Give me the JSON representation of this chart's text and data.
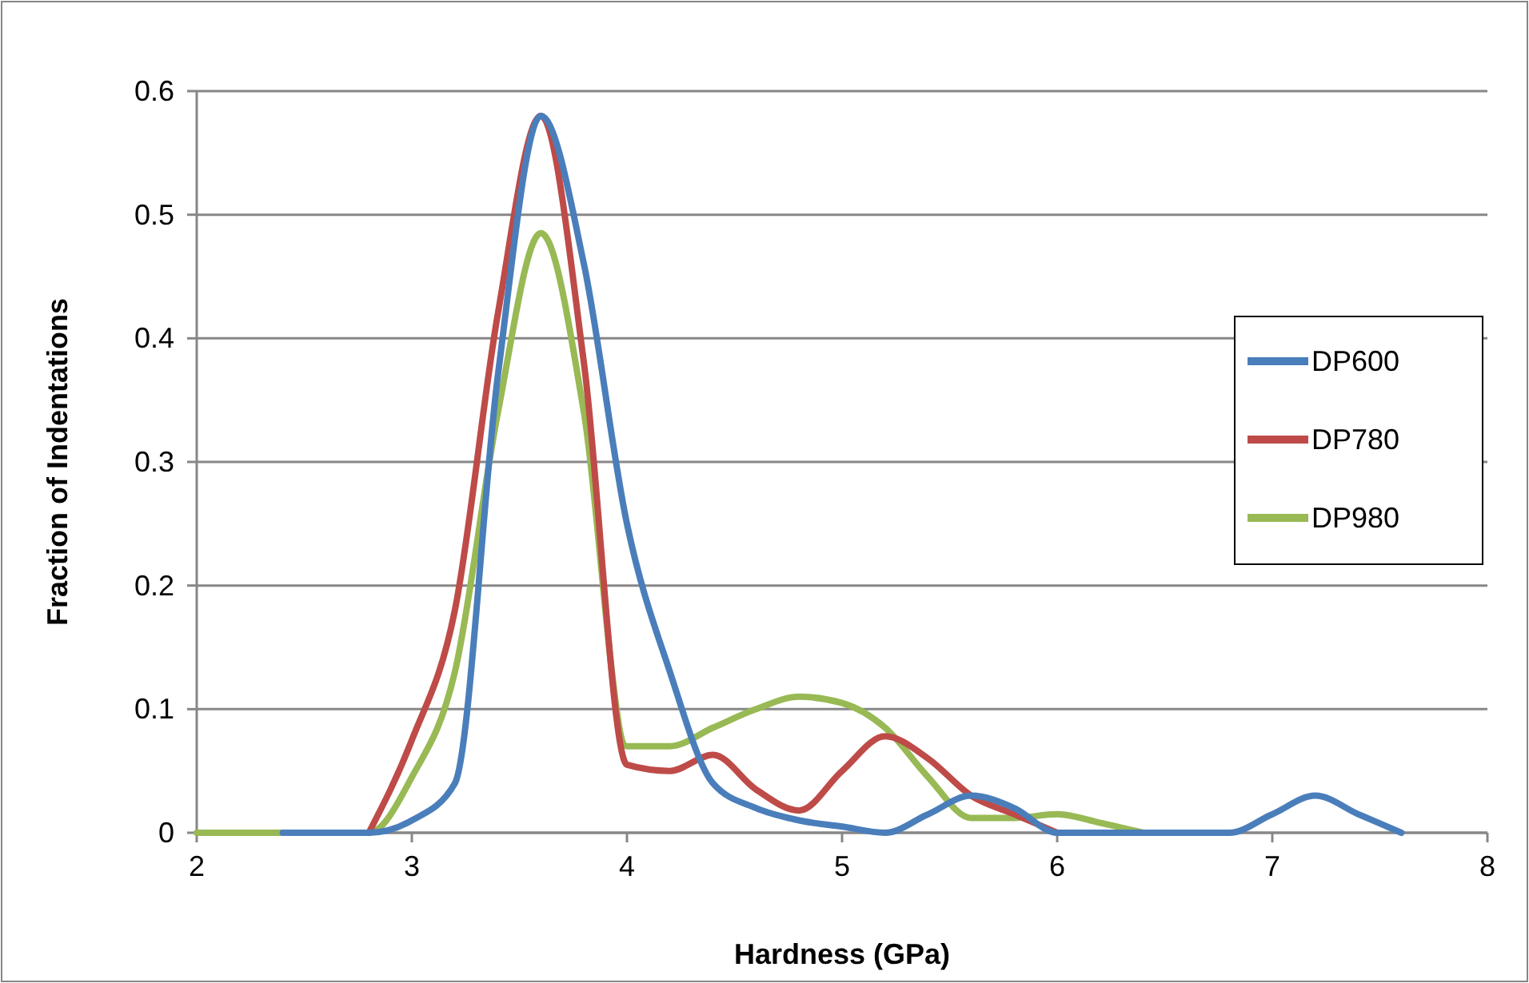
{
  "chart_data": {
    "type": "line",
    "xlabel": "Hardness (GPa)",
    "ylabel": "Fraction of Indentations",
    "x": [
      2,
      2.2,
      2.4,
      2.6,
      2.8,
      3,
      3.2,
      3.4,
      3.6,
      3.8,
      4,
      4.2,
      4.4,
      4.6,
      4.8,
      5,
      5.2,
      5.4,
      5.6,
      5.8,
      6,
      6.2,
      6.4,
      6.6,
      6.8,
      7,
      7.2,
      7.4,
      7.6
    ],
    "series": [
      {
        "name": "DP600",
        "color": "#4a7ebb",
        "values": [
          null,
          null,
          0,
          0,
          0,
          0.01,
          0.04,
          0.37,
          0.58,
          0.46,
          0.25,
          0.13,
          0.04,
          0.02,
          0.01,
          0.005,
          0,
          0.015,
          0.03,
          0.02,
          0,
          0,
          0,
          0,
          0,
          0.015,
          0.03,
          0.015,
          0
        ]
      },
      {
        "name": "DP780",
        "color": "#be4b48",
        "values": [
          null,
          null,
          null,
          null,
          0,
          0.075,
          0.18,
          0.42,
          0.58,
          0.38,
          0.055,
          0.05,
          0.063,
          0.035,
          0.018,
          0.05,
          0.078,
          0.06,
          0.03,
          0.015,
          0,
          null,
          null,
          null,
          null,
          null,
          null,
          null,
          null
        ]
      },
      {
        "name": "DP980",
        "color": "#98b954",
        "values": [
          0,
          0,
          0,
          0,
          0,
          0.045,
          0.13,
          0.34,
          0.485,
          0.34,
          0.07,
          0.07,
          0.085,
          0.1,
          0.11,
          0.105,
          0.085,
          0.045,
          0.012,
          0.012,
          0.015,
          0.008,
          0,
          null,
          null,
          null,
          null,
          null,
          null
        ]
      }
    ],
    "xlim": [
      2,
      8
    ],
    "xticks": [
      2,
      3,
      4,
      5,
      6,
      7,
      8
    ],
    "ylim": [
      0,
      0.6
    ],
    "yticks": [
      0,
      0.1,
      0.2,
      0.3,
      0.4,
      0.5,
      0.6
    ],
    "grid": "y",
    "legend": "right",
    "line_style": "solid",
    "marker": "none"
  }
}
